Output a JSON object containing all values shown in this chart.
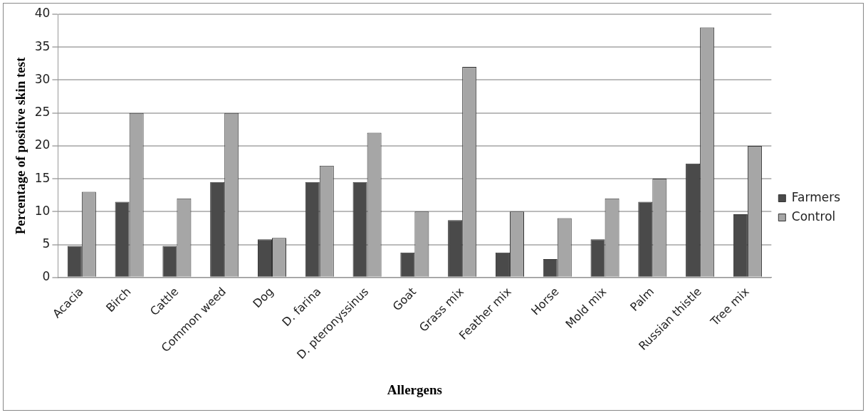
{
  "chart_data": {
    "type": "bar",
    "xlabel": "Allergens",
    "ylabel": "Percentage of positive skin test",
    "categories": [
      "Acacia",
      "Birch",
      "Cattle",
      "Common weed",
      "Dog",
      "D. farina",
      "D. pteronyssinus",
      "Goat",
      "Grass mix",
      "Feather mix",
      "Horse",
      "Mold mix",
      "Palm",
      "Russian thistle",
      "Tree mix"
    ],
    "series": [
      {
        "name": "Farmers",
        "color": "#4a4a4a",
        "values": [
          4.8,
          11.5,
          4.8,
          14.5,
          5.8,
          14.5,
          14.5,
          3.8,
          8.7,
          3.8,
          2.8,
          5.8,
          11.5,
          17.3,
          9.6
        ]
      },
      {
        "name": "Control",
        "color": "#a6a6a6",
        "values": [
          13,
          25,
          12,
          25,
          6,
          17,
          22,
          10,
          32,
          10,
          9,
          12,
          15,
          38,
          20
        ]
      }
    ],
    "ylim": [
      0,
      40
    ],
    "yticks": [
      0,
      5,
      10,
      15,
      20,
      25,
      30,
      35,
      40
    ],
    "grid": "y",
    "legend": "right"
  }
}
